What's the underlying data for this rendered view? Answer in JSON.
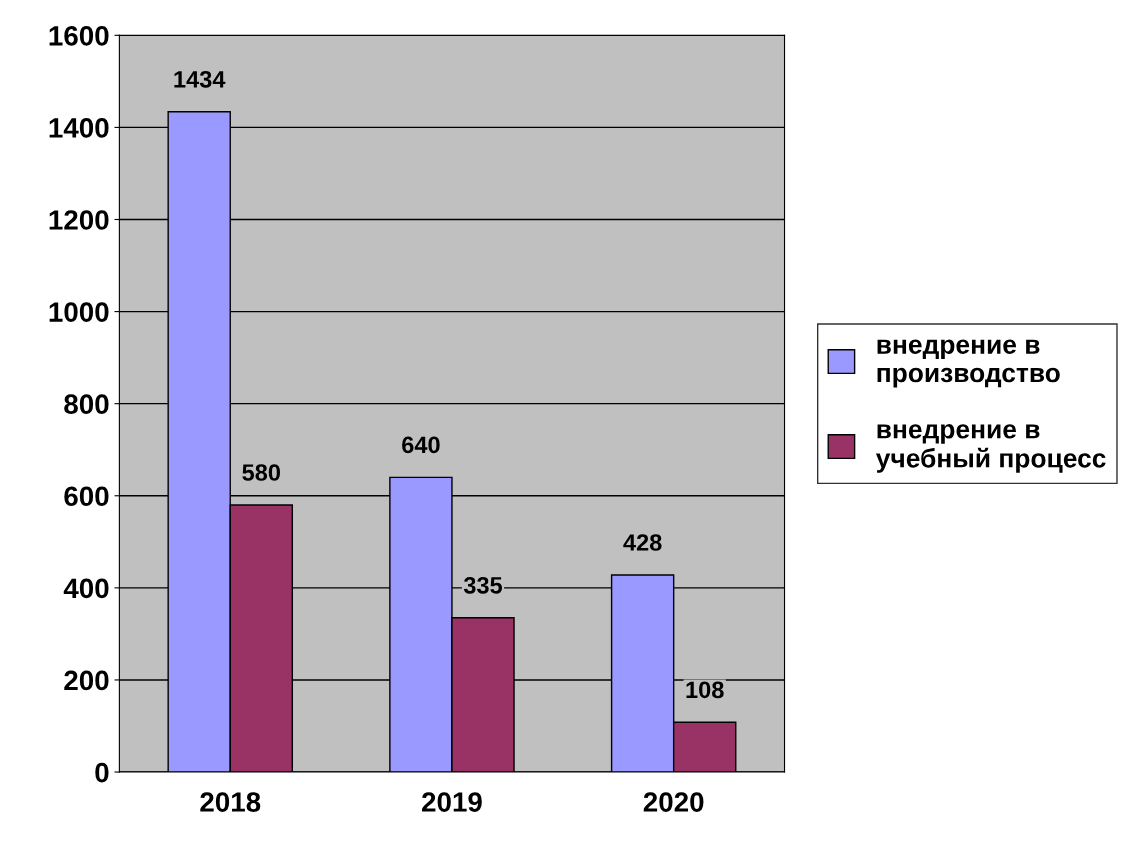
{
  "chart_data": {
    "type": "bar",
    "categories": [
      "2018",
      "2019",
      "2020"
    ],
    "series": [
      {
        "name": "внедрение в производство",
        "color": "#9999ff",
        "values": [
          1434,
          640,
          428
        ]
      },
      {
        "name": "внедрение в учебный процесс",
        "color": "#993366",
        "values": [
          580,
          335,
          108
        ]
      }
    ],
    "ylim": [
      0,
      1600
    ],
    "yticks": [
      0,
      200,
      400,
      600,
      800,
      1000,
      1200,
      1400,
      1600
    ],
    "grid": "y",
    "legend": "right",
    "data_labels": true
  }
}
